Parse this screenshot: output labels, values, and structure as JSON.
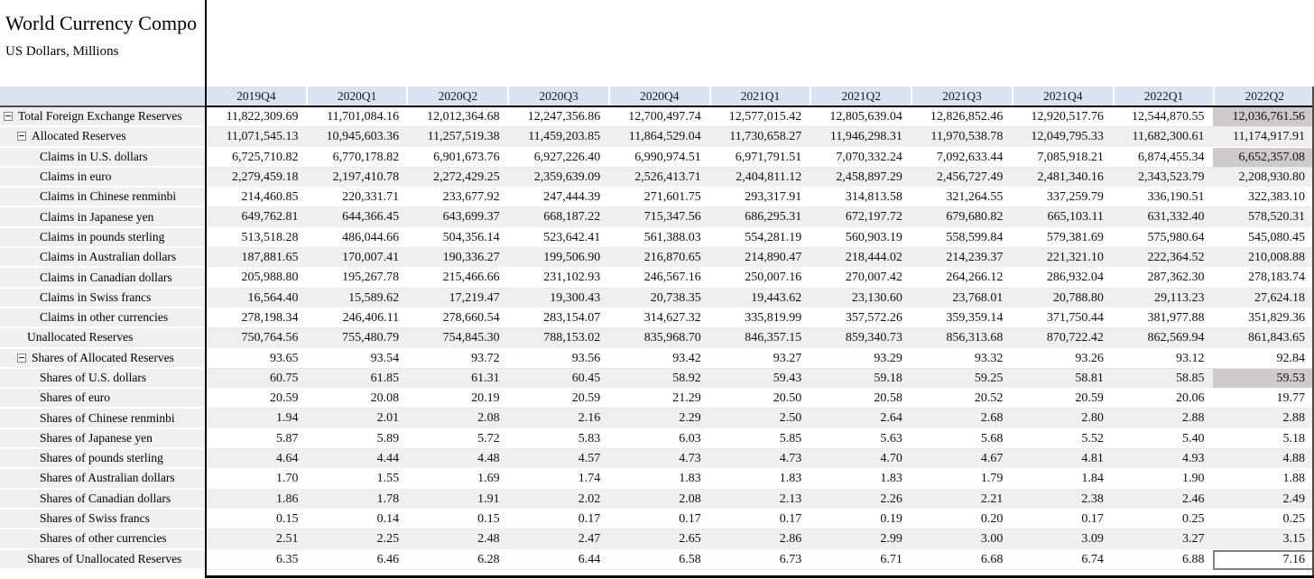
{
  "header": {
    "title": "World Currency Compo",
    "subtitle": "US Dollars, Millions"
  },
  "colors": {
    "header_bg": "#dbe3f2",
    "label_bg": "#f0f0f0",
    "row_alt_bg": "#efefef",
    "highlight_bg": "#cccaca"
  },
  "table": {
    "columns": [
      "2019Q4",
      "2020Q1",
      "2020Q2",
      "2020Q3",
      "2020Q4",
      "2021Q1",
      "2021Q2",
      "2021Q3",
      "2021Q4",
      "2022Q1",
      "2022Q2"
    ],
    "rows": [
      {
        "label": "Total Foreign Exchange Reserves",
        "level": 0,
        "expander": true,
        "values": [
          "11,822,309.69",
          "11,701,084.16",
          "12,012,364.68",
          "12,247,356.86",
          "12,700,497.74",
          "12,577,015.42",
          "12,805,639.04",
          "12,826,852.46",
          "12,920,517.76",
          "12,544,870.55",
          "12,036,761.56"
        ]
      },
      {
        "label": "Allocated Reserves",
        "level": 1,
        "expander": true,
        "values": [
          "11,071,545.13",
          "10,945,603.36",
          "11,257,519.38",
          "11,459,203.85",
          "11,864,529.04",
          "11,730,658.27",
          "11,946,298.31",
          "11,970,538.78",
          "12,049,795.33",
          "11,682,300.61",
          "11,174,917.91"
        ]
      },
      {
        "label": "Claims in U.S. dollars",
        "level": 2,
        "expander": false,
        "values": [
          "6,725,710.82",
          "6,770,178.82",
          "6,901,673.76",
          "6,927,226.40",
          "6,990,974.51",
          "6,971,791.51",
          "7,070,332.24",
          "7,092,633.44",
          "7,085,918.21",
          "6,874,455.34",
          "6,652,357.08"
        ]
      },
      {
        "label": "Claims in euro",
        "level": 2,
        "expander": false,
        "values": [
          "2,279,459.18",
          "2,197,410.78",
          "2,272,429.25",
          "2,359,639.09",
          "2,526,413.71",
          "2,404,811.12",
          "2,458,897.29",
          "2,456,727.49",
          "2,481,340.16",
          "2,343,523.79",
          "2,208,930.80"
        ]
      },
      {
        "label": "Claims in Chinese renminbi",
        "level": 2,
        "expander": false,
        "values": [
          "214,460.85",
          "220,331.71",
          "233,677.92",
          "247,444.39",
          "271,601.75",
          "293,317.91",
          "314,813.58",
          "321,264.55",
          "337,259.79",
          "336,190.51",
          "322,383.10"
        ]
      },
      {
        "label": "Claims in Japanese yen",
        "level": 2,
        "expander": false,
        "values": [
          "649,762.81",
          "644,366.45",
          "643,699.37",
          "668,187.22",
          "715,347.56",
          "686,295.31",
          "672,197.72",
          "679,680.82",
          "665,103.11",
          "631,332.40",
          "578,520.31"
        ]
      },
      {
        "label": "Claims in pounds sterling",
        "level": 2,
        "expander": false,
        "values": [
          "513,518.28",
          "486,044.66",
          "504,356.14",
          "523,642.41",
          "561,388.03",
          "554,281.19",
          "560,903.19",
          "558,599.84",
          "579,381.69",
          "575,980.64",
          "545,080.45"
        ]
      },
      {
        "label": "Claims in Australian dollars",
        "level": 2,
        "expander": false,
        "values": [
          "187,881.65",
          "170,007.41",
          "190,336.27",
          "199,506.90",
          "216,870.65",
          "214,890.47",
          "218,444.02",
          "214,239.37",
          "221,321.10",
          "222,364.52",
          "210,008.88"
        ]
      },
      {
        "label": "Claims in Canadian dollars",
        "level": 2,
        "expander": false,
        "values": [
          "205,988.80",
          "195,267.78",
          "215,466.66",
          "231,102.93",
          "246,567.16",
          "250,007.16",
          "270,007.42",
          "264,266.12",
          "286,932.04",
          "287,362.30",
          "278,183.74"
        ]
      },
      {
        "label": "Claims in Swiss francs",
        "level": 2,
        "expander": false,
        "values": [
          "16,564.40",
          "15,589.62",
          "17,219.47",
          "19,300.43",
          "20,738.35",
          "19,443.62",
          "23,130.60",
          "23,768.01",
          "20,788.80",
          "29,113.23",
          "27,624.18"
        ]
      },
      {
        "label": "Claims in other currencies",
        "level": 2,
        "expander": false,
        "values": [
          "278,198.34",
          "246,406.11",
          "278,660.54",
          "283,154.07",
          "314,627.32",
          "335,819.99",
          "357,572.26",
          "359,359.14",
          "371,750.44",
          "381,977.88",
          "351,829.36"
        ]
      },
      {
        "label": "Unallocated Reserves",
        "level": 1,
        "expander": false,
        "values": [
          "750,764.56",
          "755,480.79",
          "754,845.30",
          "788,153.02",
          "835,968.70",
          "846,357.15",
          "859,340.73",
          "856,313.68",
          "870,722.42",
          "862,569.94",
          "861,843.65"
        ]
      },
      {
        "label": "Shares of Allocated Reserves",
        "level": 1,
        "expander": true,
        "values": [
          "93.65",
          "93.54",
          "93.72",
          "93.56",
          "93.42",
          "93.27",
          "93.29",
          "93.32",
          "93.26",
          "93.12",
          "92.84"
        ]
      },
      {
        "label": "Shares of U.S. dollars",
        "level": 2,
        "expander": false,
        "values": [
          "60.75",
          "61.85",
          "61.31",
          "60.45",
          "58.92",
          "59.43",
          "59.18",
          "59.25",
          "58.81",
          "58.85",
          "59.53"
        ]
      },
      {
        "label": "Shares of euro",
        "level": 2,
        "expander": false,
        "values": [
          "20.59",
          "20.08",
          "20.19",
          "20.59",
          "21.29",
          "20.50",
          "20.58",
          "20.52",
          "20.59",
          "20.06",
          "19.77"
        ]
      },
      {
        "label": "Shares of Chinese renminbi",
        "level": 2,
        "expander": false,
        "values": [
          "1.94",
          "2.01",
          "2.08",
          "2.16",
          "2.29",
          "2.50",
          "2.64",
          "2.68",
          "2.80",
          "2.88",
          "2.88"
        ]
      },
      {
        "label": "Shares of Japanese yen",
        "level": 2,
        "expander": false,
        "values": [
          "5.87",
          "5.89",
          "5.72",
          "5.83",
          "6.03",
          "5.85",
          "5.63",
          "5.68",
          "5.52",
          "5.40",
          "5.18"
        ]
      },
      {
        "label": "Shares of pounds sterling",
        "level": 2,
        "expander": false,
        "values": [
          "4.64",
          "4.44",
          "4.48",
          "4.57",
          "4.73",
          "4.73",
          "4.70",
          "4.67",
          "4.81",
          "4.93",
          "4.88"
        ]
      },
      {
        "label": "Shares of Australian dollars",
        "level": 2,
        "expander": false,
        "values": [
          "1.70",
          "1.55",
          "1.69",
          "1.74",
          "1.83",
          "1.83",
          "1.83",
          "1.79",
          "1.84",
          "1.90",
          "1.88"
        ]
      },
      {
        "label": "Shares of Canadian dollars",
        "level": 2,
        "expander": false,
        "values": [
          "1.86",
          "1.78",
          "1.91",
          "2.02",
          "2.08",
          "2.13",
          "2.26",
          "2.21",
          "2.38",
          "2.46",
          "2.49"
        ]
      },
      {
        "label": "Shares of Swiss francs",
        "level": 2,
        "expander": false,
        "values": [
          "0.15",
          "0.14",
          "0.15",
          "0.17",
          "0.17",
          "0.17",
          "0.19",
          "0.20",
          "0.17",
          "0.25",
          "0.25"
        ]
      },
      {
        "label": "Shares of other currencies",
        "level": 2,
        "expander": false,
        "values": [
          "2.51",
          "2.25",
          "2.48",
          "2.47",
          "2.65",
          "2.86",
          "2.99",
          "3.00",
          "3.09",
          "3.27",
          "3.15"
        ]
      },
      {
        "label": "Shares of Unallocated Reserves",
        "level": 1,
        "expander": false,
        "values": [
          "6.35",
          "6.46",
          "6.28",
          "6.44",
          "6.58",
          "6.73",
          "6.71",
          "6.68",
          "6.74",
          "6.88",
          "7.16"
        ]
      }
    ],
    "highlighted_cells": [
      {
        "row": 0,
        "col": 10
      },
      {
        "row": 2,
        "col": 10
      },
      {
        "row": 13,
        "col": 10
      }
    ],
    "selected_cell": {
      "row": 22,
      "col": 10
    }
  }
}
